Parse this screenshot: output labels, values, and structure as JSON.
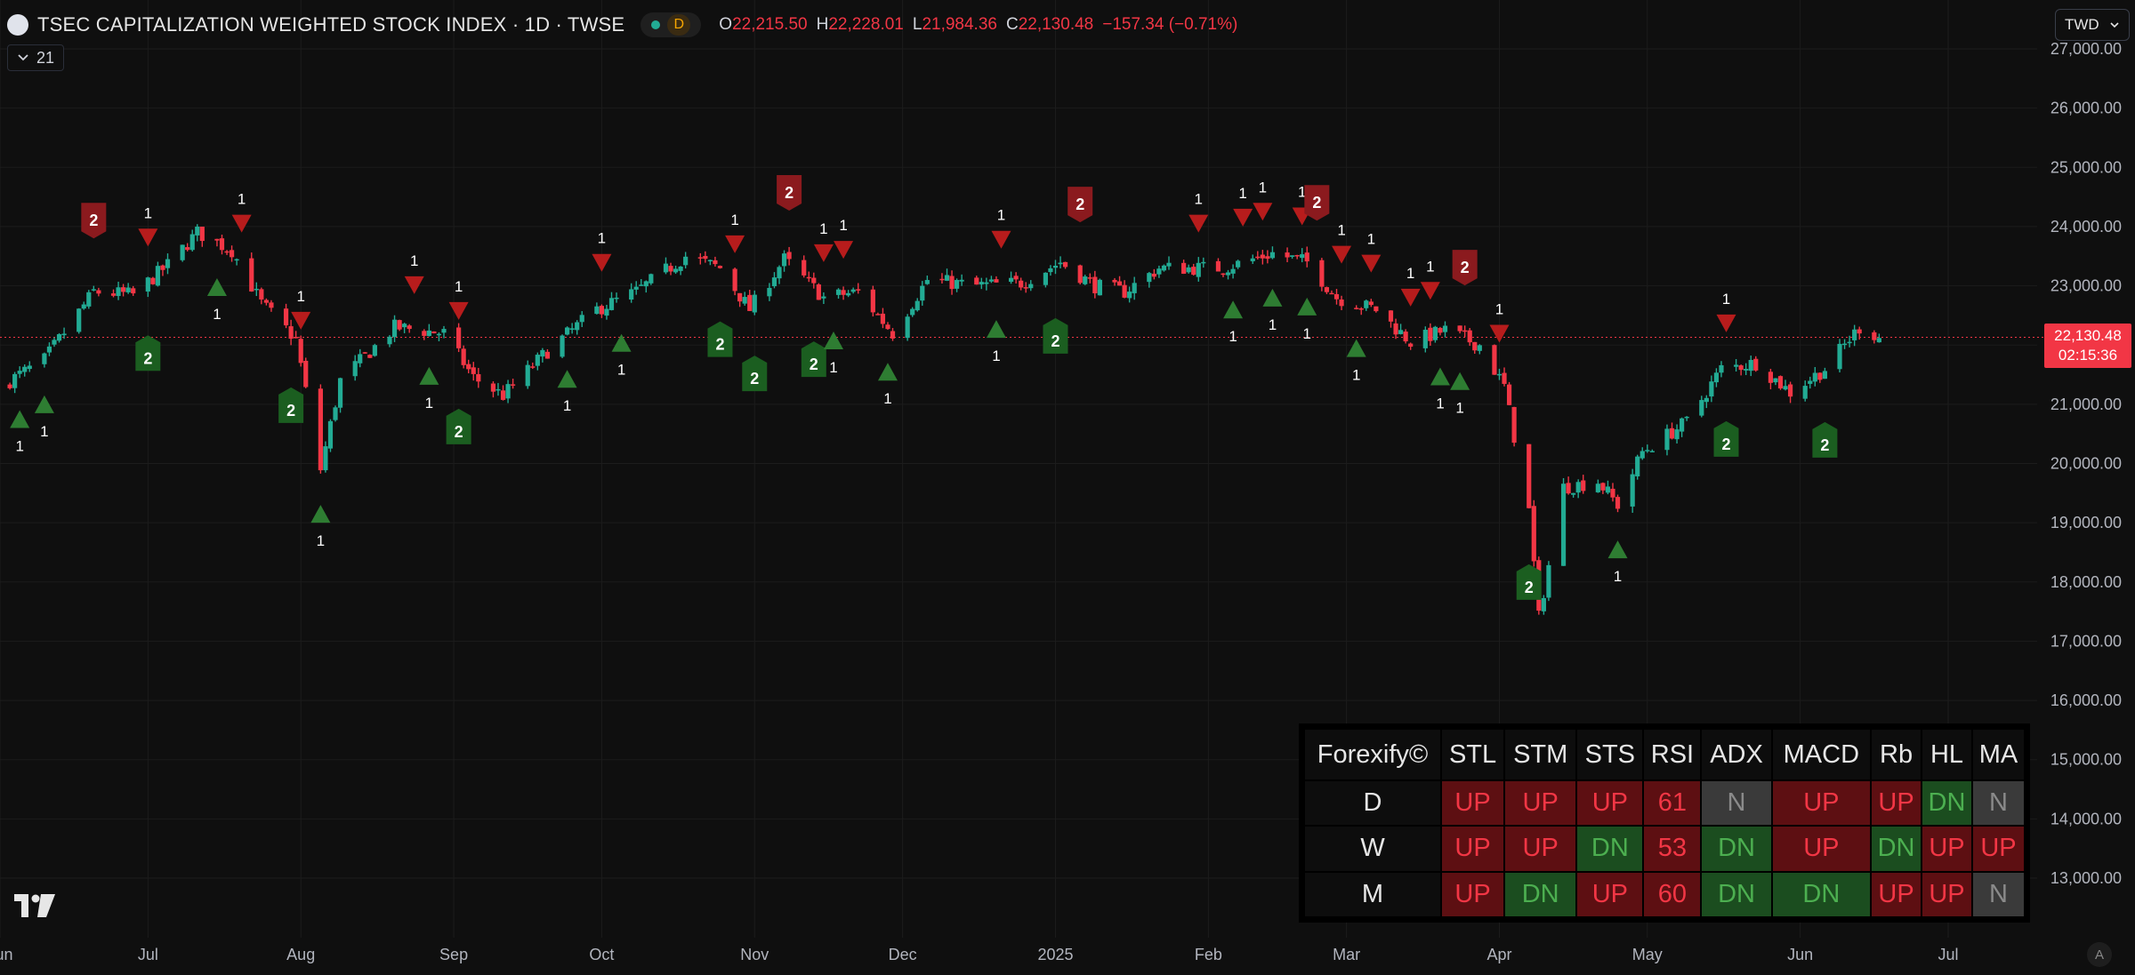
{
  "header": {
    "title": "TSEC CAPITALIZATION WEIGHTED STOCK INDEX · 1D · TWSE",
    "interval_badge": "D",
    "ohlc": [
      {
        "k": "O",
        "v": "22,215.50"
      },
      {
        "k": "H",
        "v": "22,228.01"
      },
      {
        "k": "L",
        "v": "21,984.36"
      },
      {
        "k": "C",
        "v": "22,130.48"
      }
    ],
    "change": "−157.34 (−0.71%)",
    "indicator_count": "21",
    "currency": "TWD"
  },
  "price_tag": {
    "price": "22,130.48",
    "countdown": "02:15:36"
  },
  "colors": {
    "up": "#22ab94",
    "down": "#f23645",
    "signal_up": "#1b5e20",
    "signal_down": "#8b1a1e"
  },
  "chart_data": {
    "type": "candlestick",
    "last_price": 22130.48,
    "y_axis": {
      "range": [
        12200,
        27300
      ],
      "ticks": [
        13000,
        14000,
        15000,
        16000,
        17000,
        18000,
        19000,
        20000,
        21000,
        22000,
        23000,
        24000,
        25000,
        26000,
        27000
      ],
      "tick_labels": [
        "13,000.00",
        "14,000.00",
        "15,000.00",
        "16,000.00",
        "17,000.00",
        "18,000.00",
        "19,000.00",
        "20,000.00",
        "21,000.00",
        "22,000.00",
        "23,000.00",
        "24,000.00",
        "25,000.00",
        "26,000.00",
        "27,000.00"
      ]
    },
    "x_axis": {
      "start": "2024-06-01",
      "labels": [
        {
          "date": "2024-06-01",
          "label": "Jun"
        },
        {
          "date": "2024-07-01",
          "label": "Jul"
        },
        {
          "date": "2024-08-01",
          "label": "Aug"
        },
        {
          "date": "2024-09-01",
          "label": "Sep"
        },
        {
          "date": "2024-10-01",
          "label": "Oct"
        },
        {
          "date": "2024-11-01",
          "label": "Nov"
        },
        {
          "date": "2024-12-01",
          "label": "Dec"
        },
        {
          "date": "2025-01-01",
          "label": "2025"
        },
        {
          "date": "2025-02-01",
          "label": "Feb"
        },
        {
          "date": "2025-03-01",
          "label": "Mar"
        },
        {
          "date": "2025-04-01",
          "label": "Apr"
        },
        {
          "date": "2025-05-01",
          "label": "May"
        },
        {
          "date": "2025-06-01",
          "label": "Jun"
        },
        {
          "date": "2025-07-01",
          "label": "Jul"
        }
      ]
    },
    "price_path": [
      [
        "2024-06-01",
        21300
      ],
      [
        "2024-06-10",
        21750
      ],
      [
        "2024-06-20",
        22900
      ],
      [
        "2024-06-28",
        22850
      ],
      [
        "2024-07-05",
        23350
      ],
      [
        "2024-07-11",
        23900
      ],
      [
        "2024-07-18",
        23600
      ],
      [
        "2024-07-24",
        22700
      ],
      [
        "2024-07-31",
        22100
      ],
      [
        "2024-08-05",
        19900
      ],
      [
        "2024-08-09",
        21400
      ],
      [
        "2024-08-20",
        22300
      ],
      [
        "2024-08-30",
        22200
      ],
      [
        "2024-09-05",
        21450
      ],
      [
        "2024-09-11",
        21150
      ],
      [
        "2024-09-20",
        21900
      ],
      [
        "2024-09-30",
        22600
      ],
      [
        "2024-10-08",
        22900
      ],
      [
        "2024-10-18",
        23500
      ],
      [
        "2024-10-25",
        23300
      ],
      [
        "2024-10-31",
        22600
      ],
      [
        "2024-11-07",
        23450
      ],
      [
        "2024-11-15",
        22800
      ],
      [
        "2024-11-22",
        22900
      ],
      [
        "2024-11-29",
        22200
      ],
      [
        "2024-12-06",
        23100
      ],
      [
        "2024-12-16",
        23000
      ],
      [
        "2024-12-25",
        23050
      ],
      [
        "2025-01-02",
        23400
      ],
      [
        "2025-01-09",
        23000
      ],
      [
        "2025-01-15",
        22900
      ],
      [
        "2025-01-22",
        23300
      ],
      [
        "2025-02-04",
        23300
      ],
      [
        "2025-02-14",
        23550
      ],
      [
        "2025-02-21",
        23400
      ],
      [
        "2025-02-27",
        22800
      ],
      [
        "2025-03-07",
        22600
      ],
      [
        "2025-03-14",
        22050
      ],
      [
        "2025-03-21",
        22250
      ],
      [
        "2025-03-28",
        22000
      ],
      [
        "2025-04-02",
        21300
      ],
      [
        "2025-04-07",
        19200
      ],
      [
        "2025-04-09",
        17400
      ],
      [
        "2025-04-14",
        19600
      ],
      [
        "2025-04-21",
        19700
      ],
      [
        "2025-04-25",
        19300
      ],
      [
        "2025-04-30",
        20200
      ],
      [
        "2025-05-09",
        20700
      ],
      [
        "2025-05-16",
        21600
      ],
      [
        "2025-05-23",
        21700
      ],
      [
        "2025-05-30",
        21200
      ],
      [
        "2025-06-06",
        21600
      ],
      [
        "2025-06-13",
        22300
      ],
      [
        "2025-06-17",
        22130
      ]
    ],
    "signals": [
      {
        "date": "2024-06-05",
        "dir": "up",
        "label": "1",
        "kind": "tri"
      },
      {
        "date": "2024-06-10",
        "dir": "up",
        "label": "1",
        "kind": "tri"
      },
      {
        "date": "2024-06-20",
        "dir": "down",
        "label": "2",
        "kind": "box"
      },
      {
        "date": "2024-07-01",
        "dir": "up",
        "label": "2",
        "kind": "box"
      },
      {
        "date": "2024-07-01",
        "dir": "down",
        "label": "1",
        "kind": "tri"
      },
      {
        "date": "2024-07-15",
        "dir": "up",
        "label": "1",
        "kind": "tri"
      },
      {
        "date": "2024-07-20",
        "dir": "down",
        "label": "1",
        "kind": "tri"
      },
      {
        "date": "2024-07-30",
        "dir": "up",
        "label": "2",
        "kind": "box"
      },
      {
        "date": "2024-08-01",
        "dir": "down",
        "label": "1",
        "kind": "tri"
      },
      {
        "date": "2024-08-05",
        "dir": "up",
        "label": "1",
        "kind": "tri"
      },
      {
        "date": "2024-08-24",
        "dir": "down",
        "label": "1",
        "kind": "tri"
      },
      {
        "date": "2024-08-27",
        "dir": "up",
        "label": "1",
        "kind": "tri"
      },
      {
        "date": "2024-09-02",
        "dir": "up",
        "label": "2",
        "kind": "box"
      },
      {
        "date": "2024-09-02",
        "dir": "down",
        "label": "1",
        "kind": "tri"
      },
      {
        "date": "2024-09-24",
        "dir": "up",
        "label": "1",
        "kind": "tri"
      },
      {
        "date": "2024-10-01",
        "dir": "down",
        "label": "1",
        "kind": "tri"
      },
      {
        "date": "2024-10-05",
        "dir": "up",
        "label": "1",
        "kind": "tri"
      },
      {
        "date": "2024-10-25",
        "dir": "up",
        "label": "2",
        "kind": "box"
      },
      {
        "date": "2024-10-28",
        "dir": "down",
        "label": "1",
        "kind": "tri"
      },
      {
        "date": "2024-11-01",
        "dir": "up",
        "label": "2",
        "kind": "box"
      },
      {
        "date": "2024-11-08",
        "dir": "down",
        "label": "2",
        "kind": "box"
      },
      {
        "date": "2024-11-13",
        "dir": "up",
        "label": "2",
        "kind": "box"
      },
      {
        "date": "2024-11-15",
        "dir": "down",
        "label": "1",
        "kind": "tri"
      },
      {
        "date": "2024-11-17",
        "dir": "up",
        "label": "1",
        "kind": "tri"
      },
      {
        "date": "2024-11-19",
        "dir": "down",
        "label": "1",
        "kind": "tri"
      },
      {
        "date": "2024-11-28",
        "dir": "up",
        "label": "1",
        "kind": "tri"
      },
      {
        "date": "2024-12-20",
        "dir": "up",
        "label": "1",
        "kind": "tri"
      },
      {
        "date": "2024-12-21",
        "dir": "down",
        "label": "1",
        "kind": "tri"
      },
      {
        "date": "2025-01-01",
        "dir": "up",
        "label": "2",
        "kind": "box"
      },
      {
        "date": "2025-01-06",
        "dir": "down",
        "label": "2",
        "kind": "box"
      },
      {
        "date": "2025-01-30",
        "dir": "down",
        "label": "1",
        "kind": "tri"
      },
      {
        "date": "2025-02-06",
        "dir": "up",
        "label": "1",
        "kind": "tri"
      },
      {
        "date": "2025-02-08",
        "dir": "down",
        "label": "1",
        "kind": "tri"
      },
      {
        "date": "2025-02-12",
        "dir": "down",
        "label": "1",
        "kind": "tri"
      },
      {
        "date": "2025-02-14",
        "dir": "up",
        "label": "1",
        "kind": "tri"
      },
      {
        "date": "2025-02-20",
        "dir": "down",
        "label": "1",
        "kind": "tri"
      },
      {
        "date": "2025-02-21",
        "dir": "up",
        "label": "1",
        "kind": "tri"
      },
      {
        "date": "2025-02-23",
        "dir": "down",
        "label": "2",
        "kind": "box"
      },
      {
        "date": "2025-02-28",
        "dir": "down",
        "label": "1",
        "kind": "tri"
      },
      {
        "date": "2025-03-03",
        "dir": "up",
        "label": "1",
        "kind": "tri"
      },
      {
        "date": "2025-03-06",
        "dir": "down",
        "label": "1",
        "kind": "tri"
      },
      {
        "date": "2025-03-14",
        "dir": "down",
        "label": "1",
        "kind": "tri"
      },
      {
        "date": "2025-03-18",
        "dir": "down",
        "label": "1",
        "kind": "tri"
      },
      {
        "date": "2025-03-20",
        "dir": "up",
        "label": "1",
        "kind": "tri"
      },
      {
        "date": "2025-03-24",
        "dir": "up",
        "label": "1",
        "kind": "tri"
      },
      {
        "date": "2025-03-25",
        "dir": "down",
        "label": "2",
        "kind": "box"
      },
      {
        "date": "2025-04-01",
        "dir": "down",
        "label": "1",
        "kind": "tri"
      },
      {
        "date": "2025-04-07",
        "dir": "up",
        "label": "2",
        "kind": "box"
      },
      {
        "date": "2025-04-25",
        "dir": "up",
        "label": "1",
        "kind": "tri"
      },
      {
        "date": "2025-05-17",
        "dir": "up",
        "label": "2",
        "kind": "box"
      },
      {
        "date": "2025-05-17",
        "dir": "down",
        "label": "1",
        "kind": "tri"
      },
      {
        "date": "2025-06-06",
        "dir": "up",
        "label": "2",
        "kind": "box"
      }
    ]
  },
  "forexify_table": {
    "title": "Forexify©",
    "columns": [
      "STL",
      "STM",
      "STS",
      "RSI",
      "ADX",
      "MACD",
      "Rb",
      "HL",
      "MA"
    ],
    "rows": [
      {
        "label": "D",
        "cells": [
          {
            "t": "UP",
            "s": "up"
          },
          {
            "t": "UP",
            "s": "up"
          },
          {
            "t": "UP",
            "s": "up"
          },
          {
            "t": "61",
            "s": "up"
          },
          {
            "t": "N",
            "s": "n"
          },
          {
            "t": "UP",
            "s": "up"
          },
          {
            "t": "UP",
            "s": "up"
          },
          {
            "t": "DN",
            "s": "dn"
          },
          {
            "t": "N",
            "s": "n"
          }
        ]
      },
      {
        "label": "W",
        "cells": [
          {
            "t": "UP",
            "s": "up"
          },
          {
            "t": "UP",
            "s": "up"
          },
          {
            "t": "DN",
            "s": "dn"
          },
          {
            "t": "53",
            "s": "up"
          },
          {
            "t": "DN",
            "s": "dn"
          },
          {
            "t": "UP",
            "s": "up"
          },
          {
            "t": "DN",
            "s": "dn"
          },
          {
            "t": "UP",
            "s": "up"
          },
          {
            "t": "UP",
            "s": "up"
          }
        ]
      },
      {
        "label": "M",
        "cells": [
          {
            "t": "UP",
            "s": "up"
          },
          {
            "t": "DN",
            "s": "dn"
          },
          {
            "t": "UP",
            "s": "up"
          },
          {
            "t": "60",
            "s": "up"
          },
          {
            "t": "DN",
            "s": "dn"
          },
          {
            "t": "DN",
            "s": "dn"
          },
          {
            "t": "UP",
            "s": "up"
          },
          {
            "t": "UP",
            "s": "up"
          },
          {
            "t": "N",
            "s": "n"
          }
        ]
      }
    ]
  }
}
